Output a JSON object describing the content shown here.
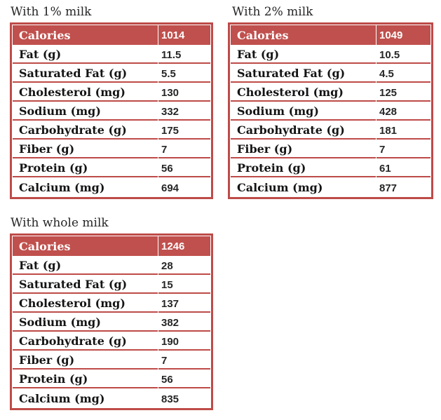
{
  "colors": {
    "accent_fill": "#c0504d",
    "accent_border": "#be4b48",
    "header_text": "#ffffff",
    "label_text": "#141414",
    "value_text": "#262626",
    "background": "#ffffff"
  },
  "tables": [
    {
      "title": "With 1% milk",
      "header": {
        "label": "Calories",
        "value": "1014"
      },
      "rows": [
        {
          "label": "Fat (g)",
          "value": "11.5"
        },
        {
          "label": "Saturated Fat (g)",
          "value": "5.5"
        },
        {
          "label": "Cholesterol (mg)",
          "value": "130"
        },
        {
          "label": "Sodium (mg)",
          "value": "332"
        },
        {
          "label": "Carbohydrate (g)",
          "value": "175"
        },
        {
          "label": "Fiber (g)",
          "value": "7"
        },
        {
          "label": "Protein (g)",
          "value": "56"
        },
        {
          "label": "Calcium (mg)",
          "value": "694"
        }
      ]
    },
    {
      "title": "With 2% milk",
      "header": {
        "label": "Calories",
        "value": "1049"
      },
      "rows": [
        {
          "label": "Fat (g)",
          "value": "10.5"
        },
        {
          "label": "Saturated Fat (g)",
          "value": "4.5"
        },
        {
          "label": "Cholesterol (mg)",
          "value": "125"
        },
        {
          "label": "Sodium (mg)",
          "value": "428"
        },
        {
          "label": "Carbohydrate (g)",
          "value": "181"
        },
        {
          "label": "Fiber (g)",
          "value": "7"
        },
        {
          "label": "Protein (g)",
          "value": "61"
        },
        {
          "label": "Calcium (mg)",
          "value": "877"
        }
      ]
    },
    {
      "title": "With whole milk",
      "header": {
        "label": "Calories",
        "value": "1246"
      },
      "rows": [
        {
          "label": "Fat (g)",
          "value": "28"
        },
        {
          "label": "Saturated Fat (g)",
          "value": "15"
        },
        {
          "label": "Cholesterol (mg)",
          "value": "137"
        },
        {
          "label": "Sodium (mg)",
          "value": "382"
        },
        {
          "label": "Carbohydrate (g)",
          "value": "190"
        },
        {
          "label": "Fiber (g)",
          "value": "7"
        },
        {
          "label": "Protein (g)",
          "value": "56"
        },
        {
          "label": "Calcium (mg)",
          "value": "835"
        }
      ]
    }
  ]
}
